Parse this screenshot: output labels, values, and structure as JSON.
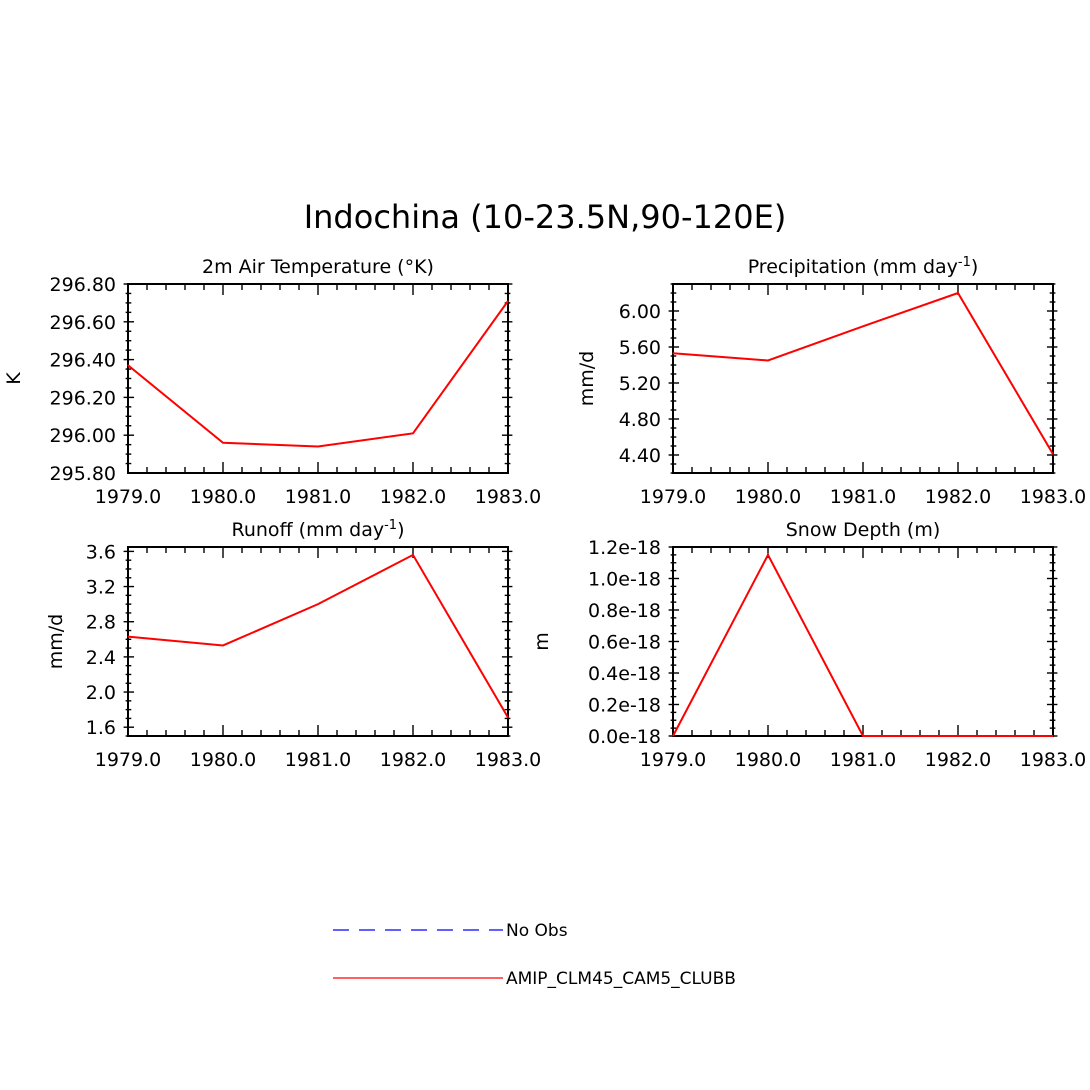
{
  "title": "Indochina (10-23.5N,90-120E)",
  "colors": {
    "model_line": "#ff0000",
    "obs_line": "#0000ff",
    "axis": "#000000",
    "background": "#ffffff"
  },
  "chart_data": [
    {
      "type": "line",
      "title": "2m Air Temperature (°K)",
      "ylabel": "K",
      "xlim": [
        1979,
        1983
      ],
      "ylim": [
        295.8,
        296.8
      ],
      "x_ticks": [
        "1979.0",
        "1980.0",
        "1981.0",
        "1982.0",
        "1983.0"
      ],
      "y_ticks": [
        "295.80",
        "296.00",
        "296.20",
        "296.40",
        "296.60",
        "296.80"
      ],
      "grid": false,
      "series": [
        {
          "name": "AMIP_CLM45_CAM5_CLUBB",
          "x": [
            1979,
            1980,
            1981,
            1982,
            1983
          ],
          "values": [
            296.37,
            295.96,
            295.94,
            296.01,
            296.71
          ]
        }
      ]
    },
    {
      "type": "line",
      "title": "Precipitation (mm day",
      "title_sup": "-1",
      "title_end": ")",
      "ylabel": "mm/d",
      "xlim": [
        1979,
        1983
      ],
      "ylim": [
        4.2,
        6.3
      ],
      "x_ticks": [
        "1979.0",
        "1980.0",
        "1981.0",
        "1982.0",
        "1983.0"
      ],
      "y_ticks": [
        "4.40",
        "4.80",
        "5.20",
        "5.60",
        "6.00"
      ],
      "grid": false,
      "series": [
        {
          "name": "AMIP_CLM45_CAM5_CLUBB",
          "x": [
            1979,
            1980,
            1981,
            1982,
            1983
          ],
          "values": [
            5.53,
            5.45,
            5.83,
            6.2,
            4.41
          ]
        }
      ]
    },
    {
      "type": "line",
      "title": "Runoff (mm day",
      "title_sup": "-1",
      "title_end": ")",
      "ylabel": "mm/d",
      "xlim": [
        1979,
        1983
      ],
      "ylim": [
        1.5,
        3.65
      ],
      "x_ticks": [
        "1979.0",
        "1980.0",
        "1981.0",
        "1982.0",
        "1983.0"
      ],
      "y_ticks": [
        "1.6",
        "2.0",
        "2.4",
        "2.8",
        "3.2",
        "3.6"
      ],
      "grid": false,
      "series": [
        {
          "name": "AMIP_CLM45_CAM5_CLUBB",
          "x": [
            1979,
            1980,
            1981,
            1982,
            1983
          ],
          "values": [
            2.63,
            2.53,
            3.0,
            3.56,
            1.71
          ]
        }
      ]
    },
    {
      "type": "line",
      "title": "Snow Depth (m)",
      "ylabel": "m",
      "xlim": [
        1979,
        1983
      ],
      "ylim": [
        0,
        1.2e-18
      ],
      "x_ticks": [
        "1979.0",
        "1980.0",
        "1981.0",
        "1982.0",
        "1983.0"
      ],
      "y_ticks": [
        "0.0e-18",
        "0.2e-18",
        "0.4e-18",
        "0.6e-18",
        "0.8e-18",
        "1.0e-18",
        "1.2e-18"
      ],
      "grid": false,
      "series": [
        {
          "name": "AMIP_CLM45_CAM5_CLUBB",
          "x": [
            1979,
            1980,
            1981,
            1982,
            1983
          ],
          "values": [
            0,
            1.15e-18,
            0,
            0,
            0
          ]
        }
      ]
    }
  ],
  "legend": {
    "placement": "bottom-center",
    "entries": [
      {
        "label": "No Obs",
        "style": "dashed",
        "color": "#0000ff"
      },
      {
        "label": "AMIP_CLM45_CAM5_CLUBB",
        "style": "solid",
        "color": "#ff0000"
      }
    ]
  }
}
